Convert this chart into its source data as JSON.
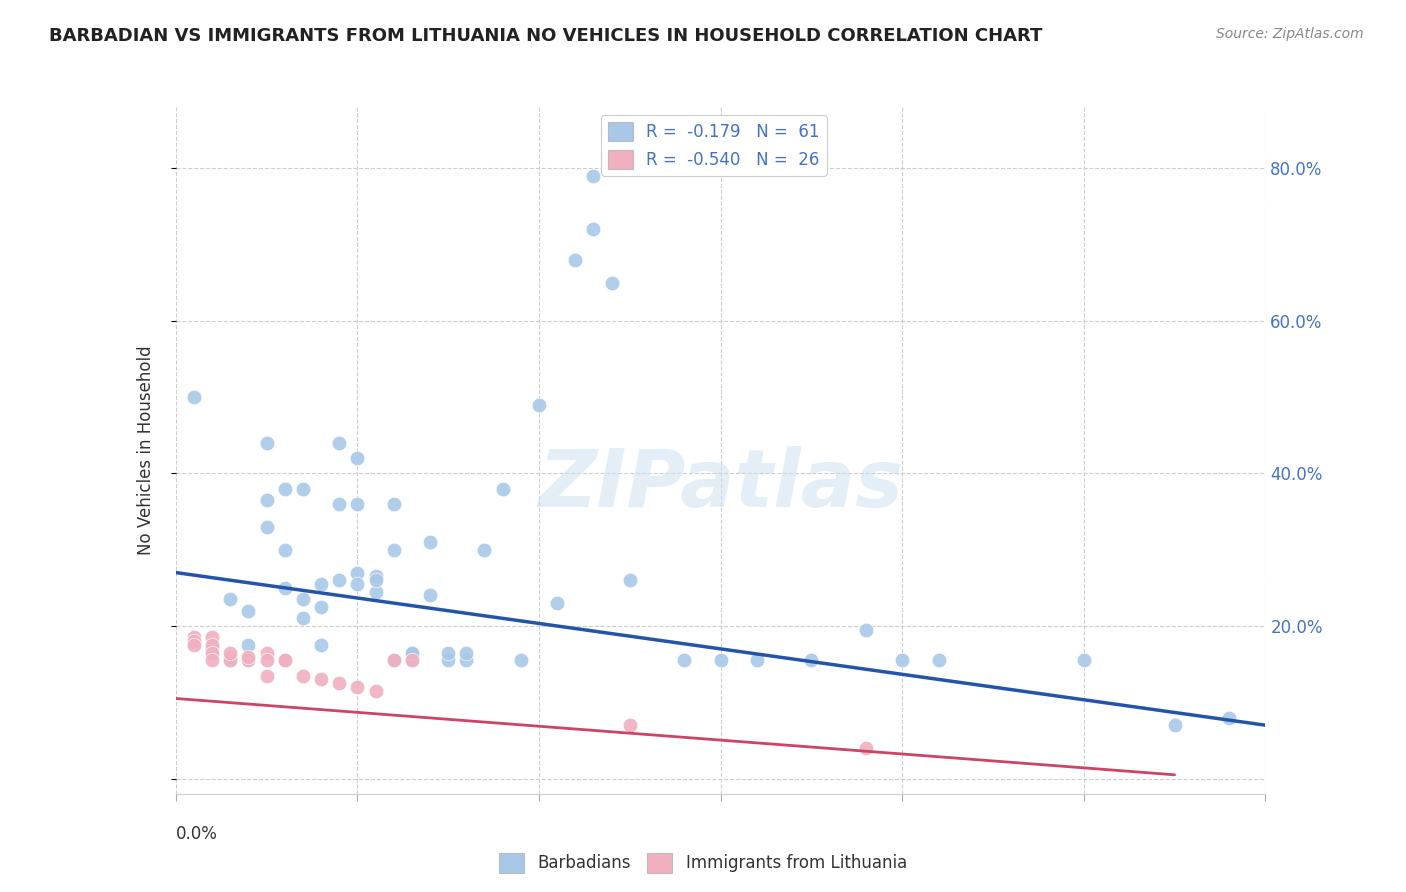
{
  "title": "BARBADIAN VS IMMIGRANTS FROM LITHUANIA NO VEHICLES IN HOUSEHOLD CORRELATION CHART",
  "source": "Source: ZipAtlas.com",
  "ylabel": "No Vehicles in Household",
  "ytick_labels": [
    "",
    "20.0%",
    "40.0%",
    "60.0%",
    "80.0%"
  ],
  "ytick_values": [
    0.0,
    0.2,
    0.4,
    0.6,
    0.8
  ],
  "xlim": [
    0.0,
    0.06
  ],
  "ylim": [
    -0.02,
    0.88
  ],
  "legend_blue_label": "R =  -0.179   N =  61",
  "legend_pink_label": "R =  -0.540   N =  26",
  "blue_color": "#a8c8e8",
  "pink_color": "#f0b0c0",
  "blue_line_color": "#2255aa",
  "pink_line_color": "#cc4466",
  "watermark_text": "ZIPatlas",
  "barbadians_x": [
    0.001,
    0.002,
    0.003,
    0.003,
    0.004,
    0.004,
    0.004,
    0.005,
    0.005,
    0.005,
    0.006,
    0.006,
    0.006,
    0.007,
    0.007,
    0.007,
    0.008,
    0.008,
    0.008,
    0.009,
    0.009,
    0.009,
    0.01,
    0.01,
    0.01,
    0.01,
    0.011,
    0.011,
    0.011,
    0.012,
    0.012,
    0.012,
    0.013,
    0.013,
    0.013,
    0.014,
    0.014,
    0.015,
    0.015,
    0.016,
    0.016,
    0.017,
    0.018,
    0.019,
    0.02,
    0.021,
    0.022,
    0.023,
    0.023,
    0.024,
    0.025,
    0.028,
    0.03,
    0.032,
    0.035,
    0.038,
    0.04,
    0.042,
    0.05,
    0.055,
    0.058
  ],
  "barbadians_y": [
    0.5,
    0.17,
    0.155,
    0.235,
    0.22,
    0.175,
    0.155,
    0.33,
    0.365,
    0.44,
    0.25,
    0.3,
    0.38,
    0.21,
    0.235,
    0.38,
    0.175,
    0.225,
    0.255,
    0.36,
    0.44,
    0.26,
    0.27,
    0.36,
    0.42,
    0.255,
    0.245,
    0.265,
    0.26,
    0.3,
    0.36,
    0.155,
    0.155,
    0.165,
    0.165,
    0.24,
    0.31,
    0.155,
    0.165,
    0.155,
    0.165,
    0.3,
    0.38,
    0.155,
    0.49,
    0.23,
    0.68,
    0.72,
    0.79,
    0.65,
    0.26,
    0.155,
    0.155,
    0.155,
    0.155,
    0.195,
    0.155,
    0.155,
    0.155,
    0.07,
    0.08
  ],
  "lithuania_x": [
    0.001,
    0.001,
    0.001,
    0.002,
    0.002,
    0.002,
    0.002,
    0.003,
    0.003,
    0.003,
    0.004,
    0.004,
    0.005,
    0.005,
    0.005,
    0.006,
    0.006,
    0.007,
    0.008,
    0.009,
    0.01,
    0.011,
    0.012,
    0.013,
    0.025,
    0.038
  ],
  "lithuania_y": [
    0.185,
    0.18,
    0.175,
    0.185,
    0.175,
    0.165,
    0.155,
    0.16,
    0.155,
    0.165,
    0.155,
    0.16,
    0.165,
    0.155,
    0.135,
    0.155,
    0.155,
    0.135,
    0.13,
    0.125,
    0.12,
    0.115,
    0.155,
    0.155,
    0.07,
    0.04
  ],
  "blue_line_x": [
    0.0,
    0.06
  ],
  "blue_line_y": [
    0.27,
    0.07
  ],
  "pink_line_x": [
    0.0,
    0.055
  ],
  "pink_line_y": [
    0.105,
    0.005
  ],
  "marker_size": 110,
  "background_color": "#ffffff",
  "grid_color": "#c8c8c8",
  "title_fontsize": 13,
  "source_fontsize": 10,
  "axis_label_fontsize": 12,
  "tick_fontsize": 12,
  "legend_fontsize": 12
}
